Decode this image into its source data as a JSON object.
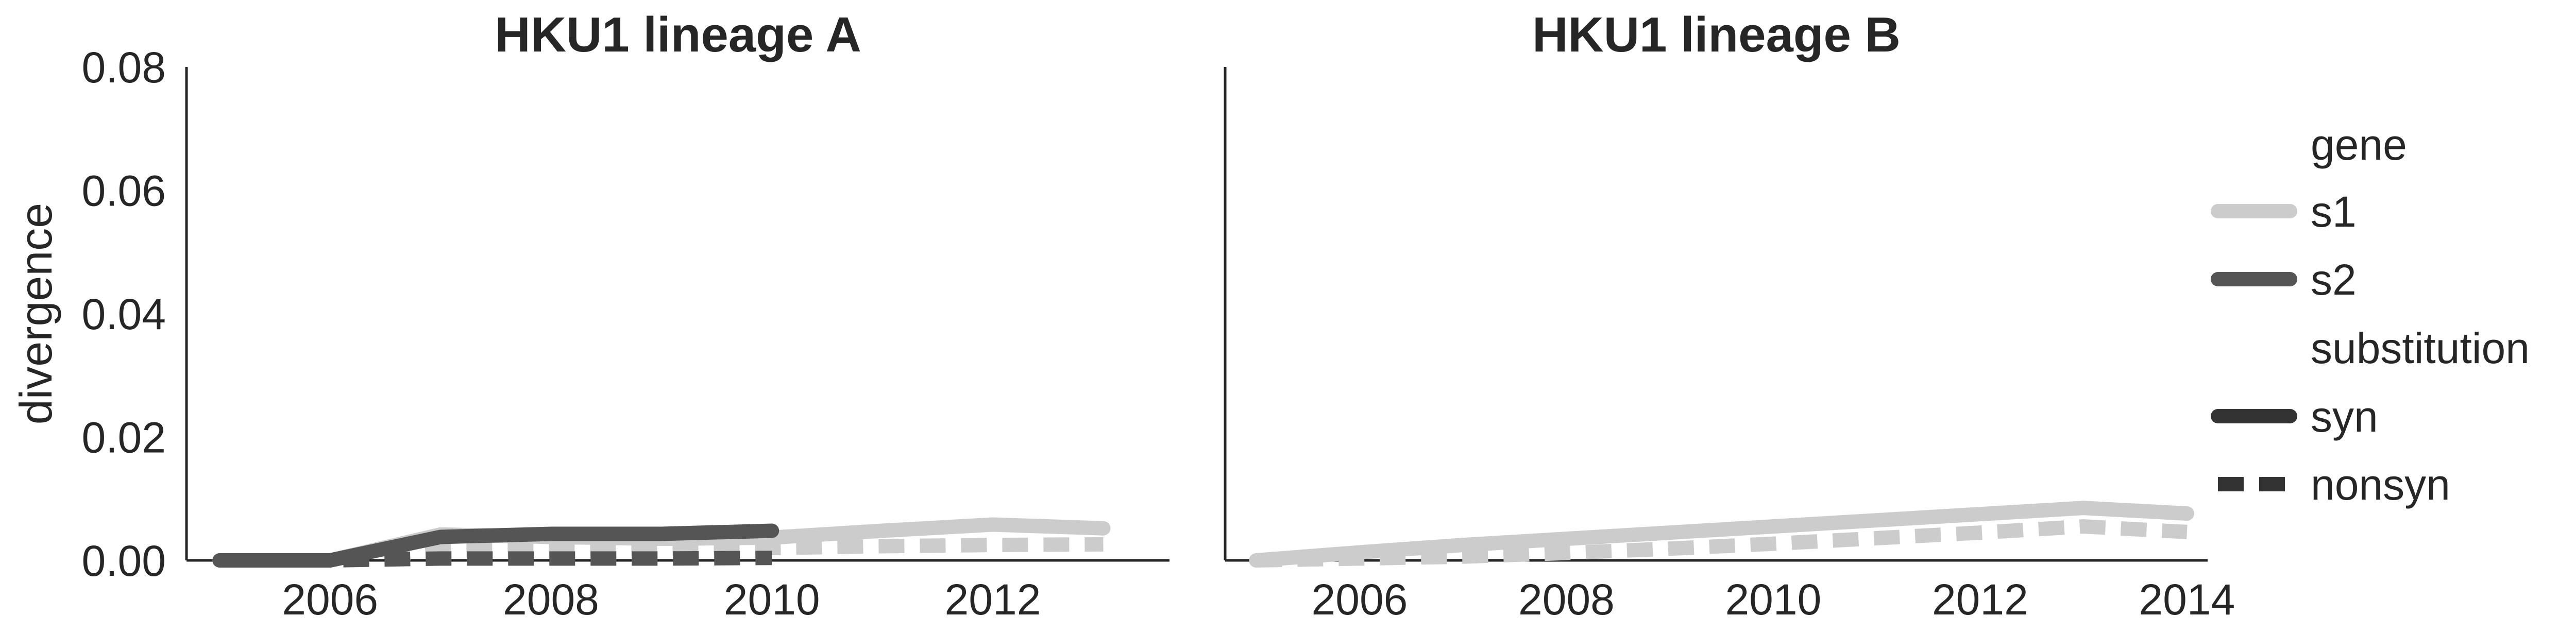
{
  "chart_data": [
    {
      "type": "line",
      "title": "HKU1 lineage A",
      "xlabel": "",
      "ylabel": "divergence",
      "xlim": [
        2004.7,
        2013.6
      ],
      "ylim": [
        0.0,
        0.08
      ],
      "xticks": [
        2006,
        2008,
        2010,
        2012
      ],
      "yticks": [
        0.0,
        0.02,
        0.04,
        0.06,
        0.08
      ],
      "ytick_labels": [
        "0.00",
        "0.02",
        "0.04",
        "0.06",
        "0.08"
      ],
      "grid": false,
      "series": [
        {
          "gene": "s1",
          "substitution": "syn",
          "color": "#cccccc",
          "x": [
            2005,
            2006,
            2007,
            2008,
            2009,
            2010,
            2011,
            2012,
            2013
          ],
          "y": [
            0.0,
            0.0,
            0.0042,
            0.0038,
            0.0035,
            0.0037,
            0.0048,
            0.0058,
            0.0052
          ]
        },
        {
          "gene": "s1",
          "substitution": "nonsyn",
          "color": "#cccccc",
          "x": [
            2005,
            2006,
            2007,
            2008,
            2009,
            2010,
            2011,
            2012,
            2013
          ],
          "y": [
            0.0,
            0.0,
            0.0016,
            0.0018,
            0.0019,
            0.002,
            0.0023,
            0.0025,
            0.0026
          ]
        },
        {
          "gene": "s2",
          "substitution": "syn",
          "color": "#555555",
          "x": [
            2005,
            2006,
            2007,
            2008,
            2009,
            2010
          ],
          "y": [
            0.0,
            0.0,
            0.0038,
            0.0043,
            0.0043,
            0.0048
          ]
        },
        {
          "gene": "s2",
          "substitution": "nonsyn",
          "color": "#555555",
          "x": [
            2005,
            2006,
            2007,
            2008,
            2009,
            2010
          ],
          "y": [
            0.0,
            0.0,
            0.0003,
            0.0003,
            0.0003,
            0.0004
          ]
        }
      ]
    },
    {
      "type": "line",
      "title": "HKU1 lineage B",
      "xlabel": "",
      "ylabel": "",
      "xlim": [
        2004.7,
        2014.2
      ],
      "ylim": [
        0.0,
        0.08
      ],
      "xticks": [
        2006,
        2008,
        2010,
        2012,
        2014
      ],
      "grid": false,
      "series": [
        {
          "gene": "s1",
          "substitution": "syn",
          "color": "#cccccc",
          "x": [
            2005,
            2006,
            2007,
            2008,
            2009,
            2010,
            2011,
            2012,
            2013,
            2014
          ],
          "y": [
            0.0,
            0.0013,
            0.0025,
            0.0035,
            0.0045,
            0.0055,
            0.0065,
            0.0075,
            0.0085,
            0.0076
          ]
        },
        {
          "gene": "s1",
          "substitution": "nonsyn",
          "color": "#cccccc",
          "x": [
            2005,
            2006,
            2007,
            2008,
            2009,
            2010,
            2011,
            2012,
            2013,
            2014
          ],
          "y": [
            0.0,
            0.0003,
            0.0006,
            0.0012,
            0.0019,
            0.0027,
            0.0036,
            0.0045,
            0.0055,
            0.0046
          ]
        }
      ]
    }
  ],
  "legend": {
    "placement": "right",
    "gene_title": "gene",
    "gene_items": [
      {
        "label": "s1",
        "color": "#cccccc"
      },
      {
        "label": "s2",
        "color": "#555555"
      }
    ],
    "substitution_title": "substitution",
    "substitution_items": [
      {
        "label": "syn",
        "style": "solid",
        "color": "#333333"
      },
      {
        "label": "nonsyn",
        "style": "dashed",
        "color": "#333333"
      }
    ]
  }
}
